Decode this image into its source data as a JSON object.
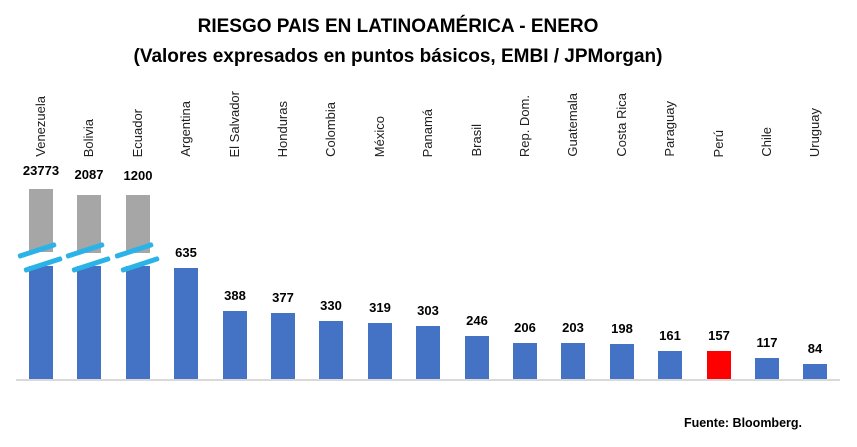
{
  "chart_data": {
    "type": "bar",
    "title": "RIESGO PAIS EN LATINOAMÉRICA - ENERO",
    "subtitle": "(Valores expresados en puntos básicos, EMBI / JPMorgan)",
    "source": "Fuente: Bloomberg.",
    "xlabel": "",
    "ylabel": "",
    "legend": "none",
    "grid": "off",
    "y_axis": "hidden",
    "categories": [
      "Venezuela",
      "Bolivia",
      "Ecuador",
      "Argentina",
      "El Salvador",
      "Honduras",
      "Colombia",
      "México",
      "Panamá",
      "Brasil",
      "Rep. Dom.",
      "Guatemala",
      "Costa Rica",
      "Paraguay",
      "Perú",
      "Chile",
      "Uruguay"
    ],
    "values": [
      23773,
      2087,
      1200,
      635,
      388,
      377,
      330,
      319,
      303,
      246,
      206,
      203,
      198,
      161,
      157,
      117,
      84
    ],
    "data_labels": [
      "23773",
      "2087",
      "1200",
      "635",
      "388",
      "377",
      "330",
      "319",
      "303",
      "246",
      "206",
      "203",
      "198",
      "161",
      "157",
      "117",
      "84"
    ],
    "highlighted_category": "Perú",
    "truncated_categories": [
      "Venezuela",
      "Bolivia",
      "Ecuador"
    ],
    "colors": {
      "bar": "#4472C4",
      "bar_highlight": "#FF0000",
      "bar_truncated_top": "#A6A6A6",
      "break_mark": "#2BB3E8",
      "axis_line": "#D9D9D9",
      "text": "#000000"
    }
  }
}
